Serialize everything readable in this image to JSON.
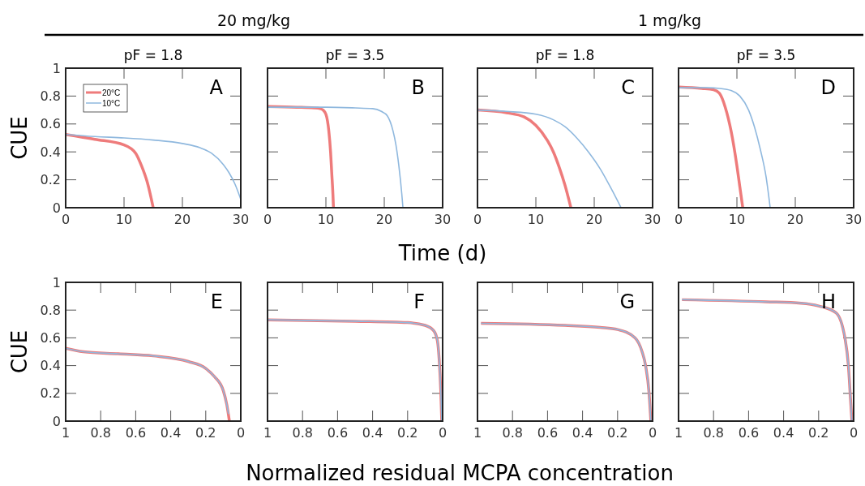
{
  "chart_data": [
    {
      "type": "line",
      "title": "pF = 1.8",
      "subtitle": "20 mg/kg",
      "ylabel": "CUE",
      "annotations": [
        "A"
      ],
      "xlim": [
        0,
        30
      ],
      "ylim": [
        0,
        1
      ],
      "xticks": [
        0,
        10,
        20,
        30
      ],
      "yticks": [
        0,
        0.2,
        0.4,
        0.6,
        0.8,
        1
      ],
      "legend": "top left",
      "marker": "none",
      "line_style": "solid",
      "series": [
        {
          "name": "20°C",
          "color": "#ee7b7b",
          "x": [
            0,
            5,
            10,
            12,
            13,
            14,
            15
          ],
          "values": [
            0.525,
            0.49,
            0.45,
            0.39,
            0.3,
            0.18,
            0
          ]
        },
        {
          "name": "10°C",
          "color": "#8fb8de",
          "x": [
            0,
            5,
            10,
            15,
            20,
            23,
            25,
            27,
            28,
            29,
            30
          ],
          "values": [
            0.525,
            0.51,
            0.5,
            0.485,
            0.46,
            0.43,
            0.39,
            0.31,
            0.25,
            0.17,
            0.06
          ]
        }
      ]
    },
    {
      "type": "line",
      "title": "pF = 3.5",
      "xlabel": "Time (d)",
      "annotations": [
        "B"
      ],
      "xlim": [
        0,
        30
      ],
      "ylim": [
        0,
        1
      ],
      "xticks": [
        0,
        10,
        20,
        30
      ],
      "yticks": [
        0,
        0.2,
        0.4,
        0.6,
        0.8,
        1
      ],
      "tick_labels": "x",
      "marker": "none",
      "line_style": "solid",
      "series": [
        {
          "color": "#ee7b7b",
          "x": [
            0,
            5,
            8,
            9,
            9.5,
            10,
            10.5,
            10.8,
            11,
            11.2,
            11.3
          ],
          "values": [
            0.725,
            0.72,
            0.715,
            0.71,
            0.7,
            0.67,
            0.55,
            0.4,
            0.25,
            0.1,
            0
          ]
        },
        {
          "color": "#8fb8de",
          "x": [
            0,
            10,
            15,
            18,
            19.5,
            20.5,
            21.5,
            22,
            22.5,
            23,
            23.2
          ],
          "values": [
            0.72,
            0.72,
            0.715,
            0.71,
            0.69,
            0.66,
            0.55,
            0.45,
            0.3,
            0.1,
            0
          ]
        }
      ]
    },
    {
      "type": "line",
      "title": "pF = 1.8",
      "subtitle": "1 mg/kg",
      "annotations": [
        "C"
      ],
      "xlim": [
        0,
        30
      ],
      "ylim": [
        0,
        1
      ],
      "xticks": [
        0,
        10,
        20,
        30
      ],
      "yticks": [
        0,
        0.2,
        0.4,
        0.6,
        0.8,
        1
      ],
      "tick_labels": "x",
      "marker": "none",
      "line_style": "solid",
      "series": [
        {
          "color": "#ee7b7b",
          "x": [
            0,
            5,
            8,
            10,
            12,
            13,
            14,
            15,
            16
          ],
          "values": [
            0.7,
            0.68,
            0.65,
            0.59,
            0.48,
            0.4,
            0.29,
            0.16,
            0
          ]
        },
        {
          "color": "#8fb8de",
          "x": [
            0,
            5,
            10,
            13,
            15,
            17,
            19,
            21,
            23,
            24.6
          ],
          "values": [
            0.7,
            0.69,
            0.67,
            0.63,
            0.58,
            0.5,
            0.4,
            0.28,
            0.13,
            0
          ]
        }
      ]
    },
    {
      "type": "line",
      "title": "pF = 3.5",
      "annotations": [
        "D"
      ],
      "xlim": [
        0,
        30
      ],
      "ylim": [
        0,
        1
      ],
      "xticks": [
        0,
        10,
        20,
        30
      ],
      "yticks": [
        0,
        0.2,
        0.4,
        0.6,
        0.8,
        1
      ],
      "tick_labels": "x",
      "marker": "none",
      "line_style": "solid",
      "series": [
        {
          "color": "#ee7b7b",
          "x": [
            0,
            4,
            6,
            7,
            8,
            9,
            10,
            10.5,
            11
          ],
          "values": [
            0.865,
            0.855,
            0.845,
            0.82,
            0.72,
            0.55,
            0.3,
            0.15,
            0
          ]
        },
        {
          "color": "#8fb8de",
          "x": [
            0,
            5,
            7,
            9,
            10.5,
            12,
            13,
            14,
            15,
            15.7
          ],
          "values": [
            0.86,
            0.86,
            0.855,
            0.84,
            0.8,
            0.7,
            0.58,
            0.42,
            0.22,
            0
          ]
        }
      ]
    },
    {
      "type": "line",
      "ylabel": "CUE",
      "xlabel": "Normalized residual MCPA concentration",
      "annotations": [
        "E"
      ],
      "xlim": [
        1,
        0
      ],
      "ylim": [
        0,
        1
      ],
      "xticks": [
        1,
        0.8,
        0.6,
        0.4,
        0.2,
        0
      ],
      "yticks": [
        0,
        0.2,
        0.4,
        0.6,
        0.8,
        1
      ],
      "marker": "none",
      "line_style": "solid",
      "series": [
        {
          "color": "#ee7b7b",
          "x": [
            1,
            0.9,
            0.7,
            0.5,
            0.3,
            0.2,
            0.15,
            0.1,
            0.08,
            0.065
          ],
          "values": [
            0.525,
            0.5,
            0.485,
            0.47,
            0.43,
            0.38,
            0.32,
            0.22,
            0.12,
            0
          ]
        },
        {
          "color": "#8fb8de",
          "x": [
            1,
            0.9,
            0.7,
            0.5,
            0.3,
            0.2,
            0.15,
            0.1,
            0.08,
            0.07
          ],
          "values": [
            0.525,
            0.5,
            0.485,
            0.47,
            0.43,
            0.38,
            0.32,
            0.22,
            0.12,
            0.05
          ]
        }
      ]
    },
    {
      "type": "line",
      "annotations": [
        "F"
      ],
      "xlim": [
        1,
        0
      ],
      "ylim": [
        0,
        1
      ],
      "xticks": [
        1,
        0.8,
        0.6,
        0.4,
        0.2,
        0
      ],
      "yticks": [
        0,
        0.2,
        0.4,
        0.6,
        0.8,
        1
      ],
      "tick_labels": "x",
      "marker": "none",
      "line_style": "solid",
      "series": [
        {
          "color": "#ee7b7b",
          "x": [
            1,
            0.5,
            0.2,
            0.1,
            0.05,
            0.03,
            0.02,
            0.01,
            0.005
          ],
          "values": [
            0.73,
            0.72,
            0.71,
            0.69,
            0.65,
            0.58,
            0.45,
            0.2,
            0
          ]
        },
        {
          "color": "#8fb8de",
          "x": [
            1,
            0.5,
            0.2,
            0.1,
            0.05,
            0.03,
            0.02,
            0.01,
            0.005
          ],
          "values": [
            0.73,
            0.72,
            0.71,
            0.69,
            0.65,
            0.58,
            0.45,
            0.2,
            0
          ]
        }
      ]
    },
    {
      "type": "line",
      "annotations": [
        "G"
      ],
      "xlim": [
        1,
        0
      ],
      "ylim": [
        0,
        1
      ],
      "xticks": [
        1,
        0.8,
        0.6,
        0.4,
        0.2,
        0
      ],
      "yticks": [
        0,
        0.2,
        0.4,
        0.6,
        0.8,
        1
      ],
      "tick_labels": "x",
      "marker": "none",
      "line_style": "solid",
      "series": [
        {
          "color": "#ee7b7b",
          "x": [
            0.98,
            0.5,
            0.3,
            0.2,
            0.1,
            0.06,
            0.04,
            0.02,
            0.01
          ],
          "values": [
            0.705,
            0.69,
            0.675,
            0.66,
            0.6,
            0.5,
            0.4,
            0.2,
            0
          ]
        },
        {
          "color": "#8fb8de",
          "x": [
            0.98,
            0.5,
            0.3,
            0.2,
            0.1,
            0.06,
            0.04,
            0.02,
            0.01
          ],
          "values": [
            0.705,
            0.69,
            0.675,
            0.66,
            0.6,
            0.5,
            0.4,
            0.2,
            0
          ]
        }
      ]
    },
    {
      "type": "line",
      "annotations": [
        "H"
      ],
      "xlim": [
        1,
        0
      ],
      "ylim": [
        0,
        1
      ],
      "xticks": [
        1,
        0.8,
        0.6,
        0.4,
        0.2,
        0
      ],
      "yticks": [
        0,
        0.2,
        0.4,
        0.6,
        0.8,
        1
      ],
      "tick_labels": "x",
      "marker": "none",
      "line_style": "solid",
      "series": [
        {
          "color": "#ee7b7b",
          "x": [
            0.98,
            0.5,
            0.3,
            0.2,
            0.1,
            0.05,
            0.03,
            0.02,
            0.01
          ],
          "values": [
            0.875,
            0.86,
            0.85,
            0.83,
            0.78,
            0.6,
            0.4,
            0.2,
            0
          ]
        },
        {
          "color": "#8fb8de",
          "x": [
            0.98,
            0.5,
            0.3,
            0.2,
            0.1,
            0.05,
            0.03,
            0.02,
            0.01
          ],
          "values": [
            0.875,
            0.86,
            0.85,
            0.83,
            0.78,
            0.6,
            0.4,
            0.2,
            0
          ]
        }
      ]
    }
  ]
}
